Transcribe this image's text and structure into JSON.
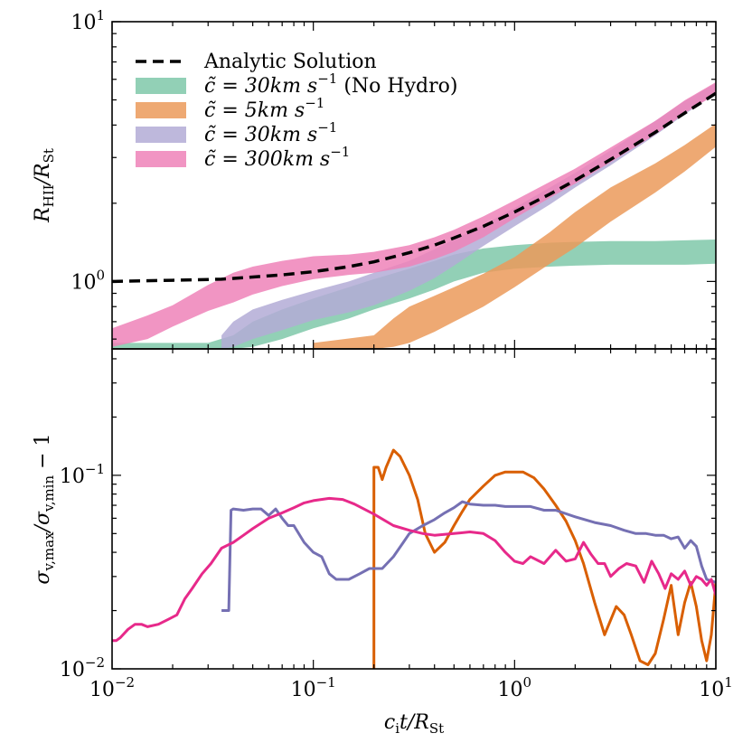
{
  "chart_data": [
    {
      "type": "area",
      "panel": "top",
      "title": "",
      "xlabel": "",
      "ylabel": "R_HII / R_St",
      "ylabel_display": {
        "base": "R",
        "sub": "HII",
        "mid": "/R",
        "sub2": "St"
      },
      "xscale": "log",
      "yscale": "log",
      "xlim": [
        0.01,
        10
      ],
      "ylim": [
        0.55,
        10
      ],
      "yticks": [
        {
          "value": 1,
          "label_base": "10",
          "label_exp": "0"
        },
        {
          "value": 10,
          "label_base": "10",
          "label_exp": "1"
        }
      ],
      "legend_position": "upper-left",
      "series": [
        {
          "name": "Analytic Solution",
          "legend": {
            "math": "Analytic Solution"
          },
          "style": "dashed-line",
          "color": "#000000",
          "x": [
            0.01,
            0.02,
            0.035,
            0.05,
            0.07,
            0.1,
            0.15,
            0.2,
            0.3,
            0.4,
            0.5,
            0.7,
            1.0,
            1.5,
            2,
            3,
            5,
            7,
            10
          ],
          "y": [
            1.0,
            1.01,
            1.02,
            1.04,
            1.06,
            1.09,
            1.14,
            1.19,
            1.29,
            1.38,
            1.47,
            1.63,
            1.85,
            2.17,
            2.45,
            2.95,
            3.75,
            4.45,
            5.3
          ]
        },
        {
          "name": "c̃ = 30 km s⁻¹ (No Hydro)",
          "legend": {
            "math": "c̃ = 30km s",
            "exp": "−1",
            "suffix": " (No Hydro)"
          },
          "style": "band",
          "color": "#7fc8a9",
          "x": [
            0.01,
            0.02,
            0.03,
            0.04,
            0.05,
            0.07,
            0.1,
            0.15,
            0.2,
            0.3,
            0.4,
            0.5,
            0.7,
            1.0,
            1.5,
            2,
            3,
            5,
            7,
            10
          ],
          "y_low": [
            0.55,
            0.55,
            0.55,
            0.55,
            0.56,
            0.6,
            0.66,
            0.72,
            0.78,
            0.86,
            0.93,
            1.0,
            1.08,
            1.12,
            1.14,
            1.15,
            1.16,
            1.16,
            1.16,
            1.17
          ],
          "y_high": [
            0.58,
            0.58,
            0.58,
            0.62,
            0.7,
            0.78,
            0.86,
            0.95,
            1.02,
            1.12,
            1.2,
            1.27,
            1.34,
            1.38,
            1.41,
            1.42,
            1.43,
            1.43,
            1.44,
            1.45
          ]
        },
        {
          "name": "c̃ = 5 km s⁻¹",
          "legend": {
            "math": "c̃ = 5km s",
            "exp": "−1",
            "suffix": ""
          },
          "style": "band",
          "color": "#eb9a5b",
          "x": [
            0.1,
            0.2,
            0.25,
            0.3,
            0.4,
            0.5,
            0.7,
            1.0,
            1.5,
            2,
            3,
            5,
            7,
            10
          ],
          "y_low": [
            0.55,
            0.55,
            0.56,
            0.58,
            0.64,
            0.7,
            0.8,
            0.95,
            1.17,
            1.35,
            1.7,
            2.2,
            2.65,
            3.3
          ],
          "y_high": [
            0.58,
            0.62,
            0.72,
            0.8,
            0.88,
            0.95,
            1.07,
            1.24,
            1.55,
            1.85,
            2.3,
            2.85,
            3.35,
            4.05
          ]
        },
        {
          "name": "c̃ = 30 km s⁻¹",
          "legend": {
            "math": "c̃ = 30km s",
            "exp": "−1",
            "suffix": ""
          },
          "style": "band",
          "color": "#b3acd6",
          "x": [
            0.035,
            0.04,
            0.05,
            0.07,
            0.1,
            0.15,
            0.2,
            0.3,
            0.4,
            0.5,
            0.7,
            1.0,
            1.5,
            2,
            3,
            5,
            7,
            10
          ],
          "y_low": [
            0.55,
            0.56,
            0.6,
            0.65,
            0.71,
            0.76,
            0.81,
            0.92,
            1.03,
            1.15,
            1.37,
            1.63,
            1.98,
            2.3,
            2.8,
            3.65,
            4.4,
            5.3
          ],
          "y_high": [
            0.62,
            0.7,
            0.78,
            0.85,
            0.92,
            1.0,
            1.08,
            1.2,
            1.33,
            1.45,
            1.65,
            1.92,
            2.3,
            2.62,
            3.2,
            4.15,
            4.95,
            5.8
          ]
        },
        {
          "name": "c̃ = 300 km s⁻¹",
          "legend": {
            "math": "c̃ = 300km s",
            "exp": "−1",
            "suffix": ""
          },
          "style": "band",
          "color": "#ee82b8",
          "x": [
            0.01,
            0.015,
            0.02,
            0.03,
            0.04,
            0.05,
            0.07,
            0.1,
            0.15,
            0.2,
            0.3,
            0.4,
            0.5,
            0.7,
            1.0,
            1.5,
            2,
            3,
            5,
            7,
            10
          ],
          "y_low": [
            0.56,
            0.6,
            0.67,
            0.77,
            0.83,
            0.89,
            0.96,
            1.02,
            1.06,
            1.08,
            1.14,
            1.22,
            1.3,
            1.48,
            1.75,
            2.1,
            2.38,
            2.88,
            3.68,
            4.45,
            5.25
          ],
          "y_high": [
            0.66,
            0.74,
            0.81,
            0.97,
            1.08,
            1.14,
            1.2,
            1.25,
            1.27,
            1.3,
            1.38,
            1.48,
            1.58,
            1.78,
            2.05,
            2.42,
            2.72,
            3.28,
            4.15,
            4.98,
            5.85
          ]
        }
      ]
    },
    {
      "type": "line",
      "panel": "bottom",
      "title": "",
      "xlabel": "c_i t / R_St",
      "xlabel_display": {
        "base": "c",
        "sub": "i",
        "mid": "t/R",
        "sub2": "St"
      },
      "ylabel": "σ_v,max / σ_v,min − 1",
      "ylabel_display": {
        "base": "σ",
        "sub": "v,max",
        "mid": "/σ",
        "sub2": "v,min",
        "tail": " − 1"
      },
      "xscale": "log",
      "yscale": "log",
      "xlim": [
        0.01,
        10
      ],
      "ylim": [
        0.01,
        0.45
      ],
      "xticks": [
        {
          "value": 0.01,
          "label_base": "10",
          "label_exp": "−2"
        },
        {
          "value": 0.1,
          "label_base": "10",
          "label_exp": "−1"
        },
        {
          "value": 1,
          "label_base": "10",
          "label_exp": "0"
        },
        {
          "value": 10,
          "label_base": "10",
          "label_exp": "1"
        }
      ],
      "yticks": [
        {
          "value": 0.01,
          "label_base": "10",
          "label_exp": "−2"
        },
        {
          "value": 0.1,
          "label_base": "10",
          "label_exp": "−1"
        }
      ],
      "series": [
        {
          "name": "c̃ = 5 km s⁻¹",
          "color": "#d95f02",
          "x": [
            0.2,
            0.2,
            0.21,
            0.22,
            0.23,
            0.25,
            0.27,
            0.3,
            0.33,
            0.36,
            0.4,
            0.45,
            0.5,
            0.55,
            0.6,
            0.7,
            0.8,
            0.9,
            1.0,
            1.1,
            1.25,
            1.4,
            1.6,
            1.8,
            2.0,
            2.2,
            2.5,
            2.8,
            3.2,
            3.5,
            3.8,
            4.2,
            4.6,
            5.0,
            5.5,
            6.0,
            6.5,
            7.0,
            7.5,
            8.0,
            8.5,
            9.0,
            9.5,
            10
          ],
          "y": [
            0.01,
            0.11,
            0.11,
            0.095,
            0.11,
            0.135,
            0.125,
            0.1,
            0.075,
            0.05,
            0.04,
            0.045,
            0.055,
            0.065,
            0.075,
            0.088,
            0.1,
            0.104,
            0.104,
            0.104,
            0.097,
            0.085,
            0.07,
            0.058,
            0.046,
            0.035,
            0.022,
            0.015,
            0.021,
            0.019,
            0.015,
            0.011,
            0.0105,
            0.012,
            0.018,
            0.027,
            0.015,
            0.022,
            0.028,
            0.021,
            0.014,
            0.011,
            0.015,
            0.028
          ]
        },
        {
          "name": "c̃ = 30 km s⁻¹",
          "color": "#7570b3",
          "x": [
            0.035,
            0.038,
            0.039,
            0.04,
            0.045,
            0.05,
            0.055,
            0.06,
            0.065,
            0.07,
            0.075,
            0.08,
            0.09,
            0.1,
            0.11,
            0.12,
            0.13,
            0.15,
            0.17,
            0.19,
            0.22,
            0.25,
            0.28,
            0.3,
            0.35,
            0.4,
            0.45,
            0.5,
            0.55,
            0.6,
            0.7,
            0.8,
            0.9,
            1.0,
            1.2,
            1.4,
            1.6,
            2.0,
            2.5,
            3.0,
            3.5,
            4.0,
            4.5,
            5.0,
            5.5,
            6.0,
            6.5,
            7.0,
            7.5,
            8.0,
            8.5,
            9.0,
            10
          ],
          "y": [
            0.02,
            0.02,
            0.066,
            0.067,
            0.066,
            0.067,
            0.067,
            0.062,
            0.067,
            0.06,
            0.055,
            0.055,
            0.045,
            0.04,
            0.038,
            0.031,
            0.029,
            0.029,
            0.031,
            0.033,
            0.033,
            0.038,
            0.045,
            0.05,
            0.055,
            0.059,
            0.064,
            0.068,
            0.073,
            0.071,
            0.07,
            0.07,
            0.069,
            0.069,
            0.069,
            0.066,
            0.066,
            0.061,
            0.057,
            0.055,
            0.052,
            0.05,
            0.05,
            0.049,
            0.049,
            0.047,
            0.048,
            0.042,
            0.046,
            0.043,
            0.034,
            0.029,
            0.028
          ]
        },
        {
          "name": "c̃ = 300 km s⁻¹",
          "color": "#e7298a",
          "x": [
            0.01,
            0.0105,
            0.011,
            0.012,
            0.013,
            0.014,
            0.015,
            0.017,
            0.019,
            0.021,
            0.023,
            0.025,
            0.028,
            0.031,
            0.035,
            0.04,
            0.045,
            0.05,
            0.06,
            0.07,
            0.08,
            0.09,
            0.1,
            0.12,
            0.14,
            0.16,
            0.2,
            0.25,
            0.3,
            0.35,
            0.4,
            0.5,
            0.6,
            0.7,
            0.8,
            0.9,
            1.0,
            1.1,
            1.2,
            1.4,
            1.6,
            1.8,
            2.0,
            2.2,
            2.4,
            2.6,
            2.8,
            3.0,
            3.3,
            3.6,
            4.0,
            4.4,
            4.8,
            5.2,
            5.6,
            6.0,
            6.5,
            7.0,
            7.5,
            8.0,
            8.5,
            9.0,
            9.5,
            10
          ],
          "y": [
            0.014,
            0.014,
            0.0145,
            0.016,
            0.017,
            0.017,
            0.0165,
            0.017,
            0.018,
            0.019,
            0.023,
            0.026,
            0.031,
            0.035,
            0.042,
            0.045,
            0.049,
            0.053,
            0.06,
            0.064,
            0.068,
            0.072,
            0.074,
            0.076,
            0.075,
            0.071,
            0.063,
            0.055,
            0.052,
            0.05,
            0.049,
            0.05,
            0.051,
            0.05,
            0.046,
            0.04,
            0.036,
            0.035,
            0.038,
            0.035,
            0.041,
            0.036,
            0.037,
            0.045,
            0.039,
            0.035,
            0.035,
            0.03,
            0.033,
            0.035,
            0.034,
            0.028,
            0.036,
            0.031,
            0.026,
            0.031,
            0.029,
            0.032,
            0.027,
            0.03,
            0.029,
            0.027,
            0.029,
            0.024
          ]
        }
      ]
    }
  ]
}
